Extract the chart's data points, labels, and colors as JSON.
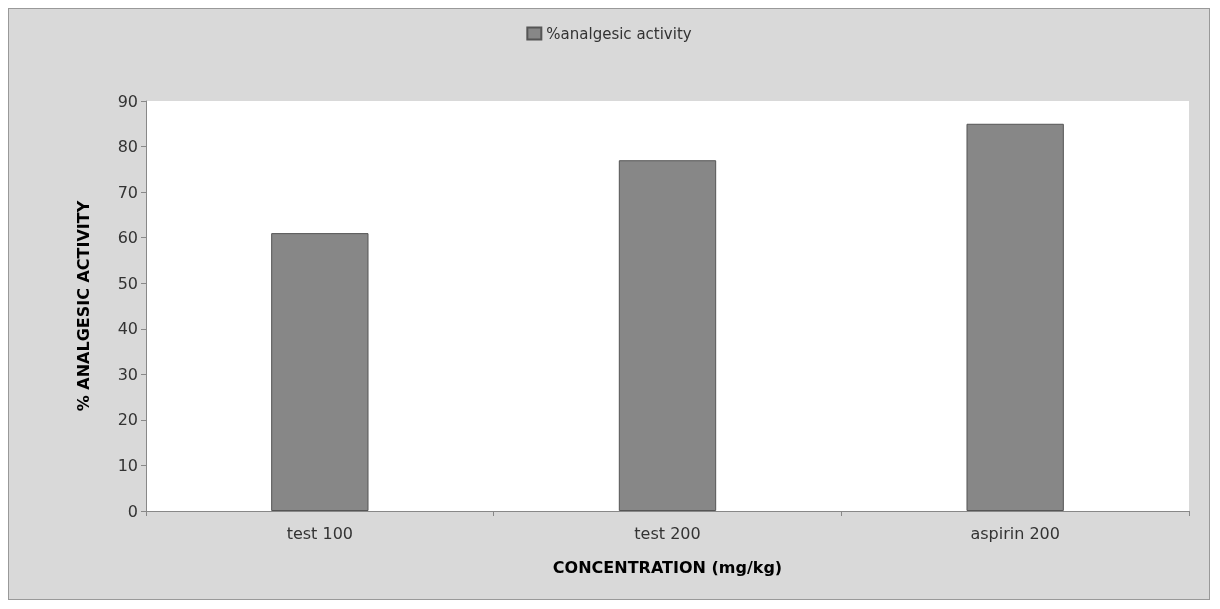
{
  "chart_data": {
    "type": "bar",
    "xlabel": "CONCENTRATION (mg/kg)",
    "ylabel": "% ANALGESIC ACTIVITY",
    "categories": [
      "test 100",
      "test 200",
      "aspirin 200"
    ],
    "series": [
      {
        "name": "%analgesic activity",
        "color": "#878787",
        "values": [
          61,
          77,
          85
        ]
      }
    ],
    "ylim": [
      0,
      90
    ],
    "yticks": [
      0,
      10,
      20,
      30,
      40,
      50,
      60,
      70,
      80,
      90
    ],
    "grid": false,
    "legend": "top"
  }
}
